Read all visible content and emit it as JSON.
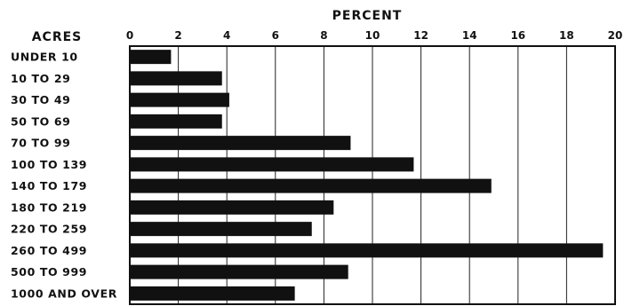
{
  "chart_data": {
    "type": "bar",
    "orientation": "horizontal",
    "title": "PERCENT",
    "category_header": "ACRES",
    "categories": [
      "UNDER 10",
      "10 TO 29",
      "30 TO 49",
      "50 TO 69",
      "70 TO 99",
      "100 TO 139",
      "140 TO 179",
      "180 TO 219",
      "220 TO 259",
      "260 TO 499",
      "500 TO 999",
      "1000 AND OVER"
    ],
    "values": [
      1.7,
      3.8,
      4.1,
      3.8,
      9.1,
      11.7,
      14.9,
      8.4,
      7.5,
      19.5,
      9.0,
      6.8
    ],
    "xlim": [
      0,
      20
    ],
    "xticks": [
      0,
      2,
      4,
      6,
      8,
      10,
      12,
      14,
      16,
      18,
      20
    ],
    "grid": true,
    "bar_color": "#111111"
  }
}
